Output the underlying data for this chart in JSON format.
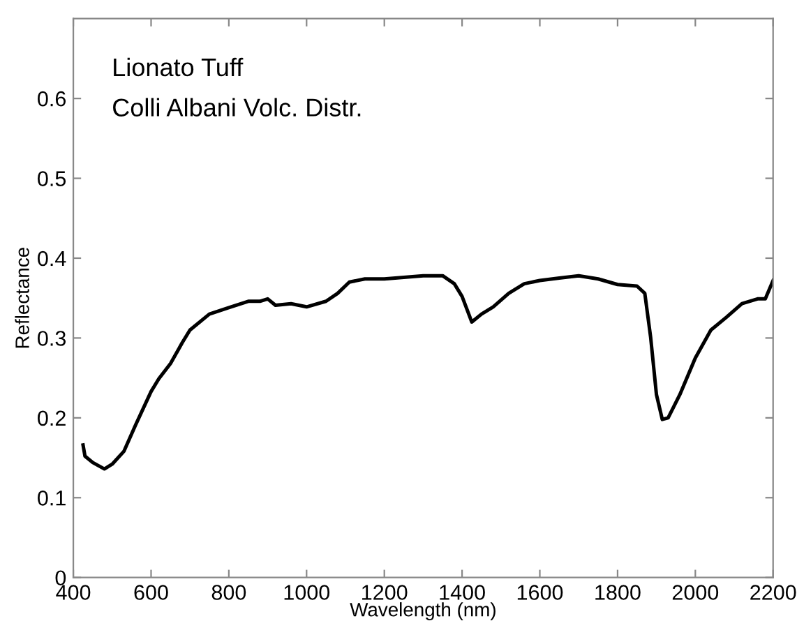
{
  "chart_data": {
    "type": "line",
    "xlabel": "Wavelength (nm)",
    "ylabel": "Reflectance",
    "annotations": [
      "Lionato Tuff",
      "Colli Albani Volc. Distr."
    ],
    "xlim": [
      400,
      2200
    ],
    "xticks": [
      400,
      600,
      800,
      1000,
      1200,
      1400,
      1600,
      1800,
      2000,
      2200
    ],
    "ylim": [
      0,
      0.7
    ],
    "yticks": [
      0,
      0.1,
      0.2,
      0.3,
      0.4,
      0.5,
      0.6
    ],
    "grid": false,
    "legend": false,
    "marker": "none",
    "line_style": "solid",
    "series": [
      {
        "color": "#000000",
        "x": [
          425,
          430,
          450,
          480,
          500,
          530,
          560,
          600,
          620,
          650,
          680,
          700,
          750,
          800,
          850,
          880,
          900,
          920,
          960,
          1000,
          1050,
          1080,
          1110,
          1150,
          1200,
          1250,
          1300,
          1350,
          1380,
          1400,
          1425,
          1450,
          1480,
          1520,
          1560,
          1600,
          1650,
          1700,
          1750,
          1800,
          1850,
          1870,
          1885,
          1900,
          1915,
          1930,
          1960,
          2000,
          2040,
          2080,
          2120,
          2160,
          2180,
          2200
        ],
        "values": [
          0.166,
          0.152,
          0.144,
          0.136,
          0.142,
          0.158,
          0.191,
          0.233,
          0.249,
          0.268,
          0.294,
          0.31,
          0.33,
          0.338,
          0.346,
          0.346,
          0.349,
          0.341,
          0.343,
          0.339,
          0.346,
          0.356,
          0.37,
          0.374,
          0.374,
          0.376,
          0.378,
          0.378,
          0.368,
          0.352,
          0.32,
          0.33,
          0.339,
          0.356,
          0.368,
          0.372,
          0.375,
          0.378,
          0.374,
          0.367,
          0.365,
          0.356,
          0.301,
          0.229,
          0.198,
          0.2,
          0.229,
          0.275,
          0.31,
          0.326,
          0.343,
          0.349,
          0.349,
          0.372
        ]
      }
    ]
  }
}
